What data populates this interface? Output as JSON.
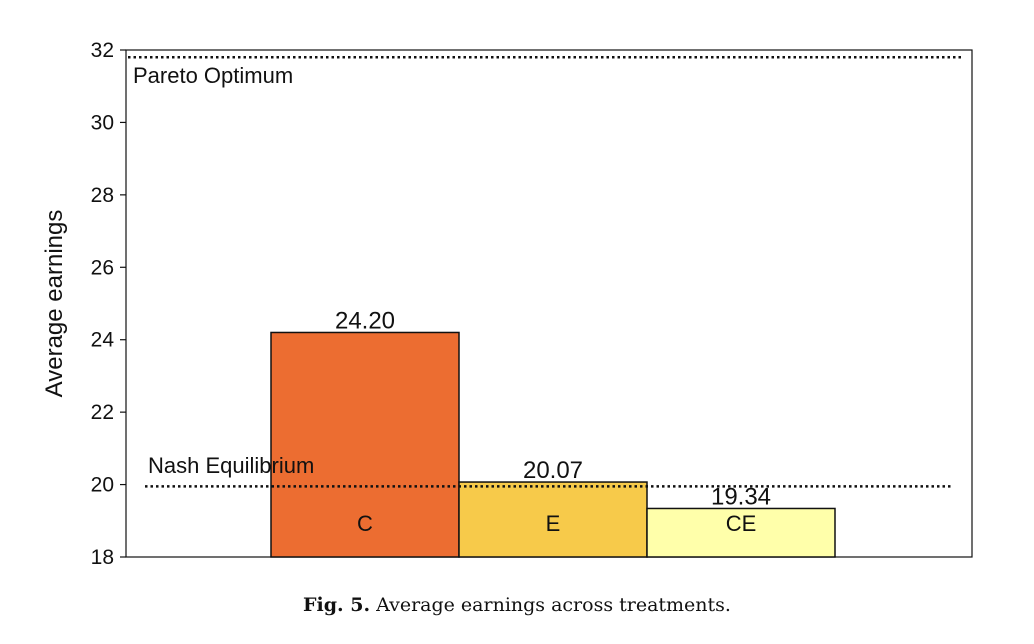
{
  "chart_data": {
    "type": "bar",
    "ylabel": "Average earnings",
    "ylim": [
      18,
      32
    ],
    "yticks": [
      18,
      20,
      22,
      24,
      26,
      28,
      30,
      32
    ],
    "categories": [
      "C",
      "E",
      "CE"
    ],
    "values": [
      24.2,
      20.07,
      19.34
    ],
    "value_labels": [
      "24.20",
      "20.07",
      "19.34"
    ],
    "colors": [
      "#ec6d31",
      "#f7ca4a",
      "#ffffaa"
    ],
    "reference_lines": [
      {
        "label": "Pareto Optimum",
        "value": 31.8,
        "style": "dotted"
      },
      {
        "label": "Nash Equilibrium",
        "value": 19.95,
        "style": "dotted"
      }
    ],
    "grid": false
  },
  "caption": {
    "number": "Fig. 5.",
    "text": "Average earnings across treatments."
  }
}
